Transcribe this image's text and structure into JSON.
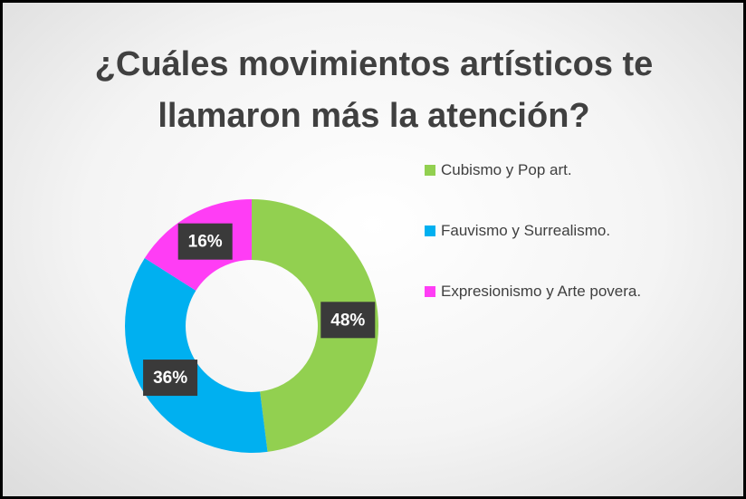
{
  "chart_data": {
    "type": "donut",
    "title": "¿Cuáles movimientos artísticos te llamaron más la atención?",
    "categories": [
      "Cubismo y Pop art.",
      "Fauvismo y Surrealismo.",
      "Expresionismo y Arte povera."
    ],
    "values": [
      48,
      36,
      16
    ],
    "value_labels": [
      "48%",
      "36%",
      "16%"
    ],
    "colors": [
      "#92d050",
      "#00b0f0",
      "#ff3df5"
    ],
    "legend": "right"
  }
}
